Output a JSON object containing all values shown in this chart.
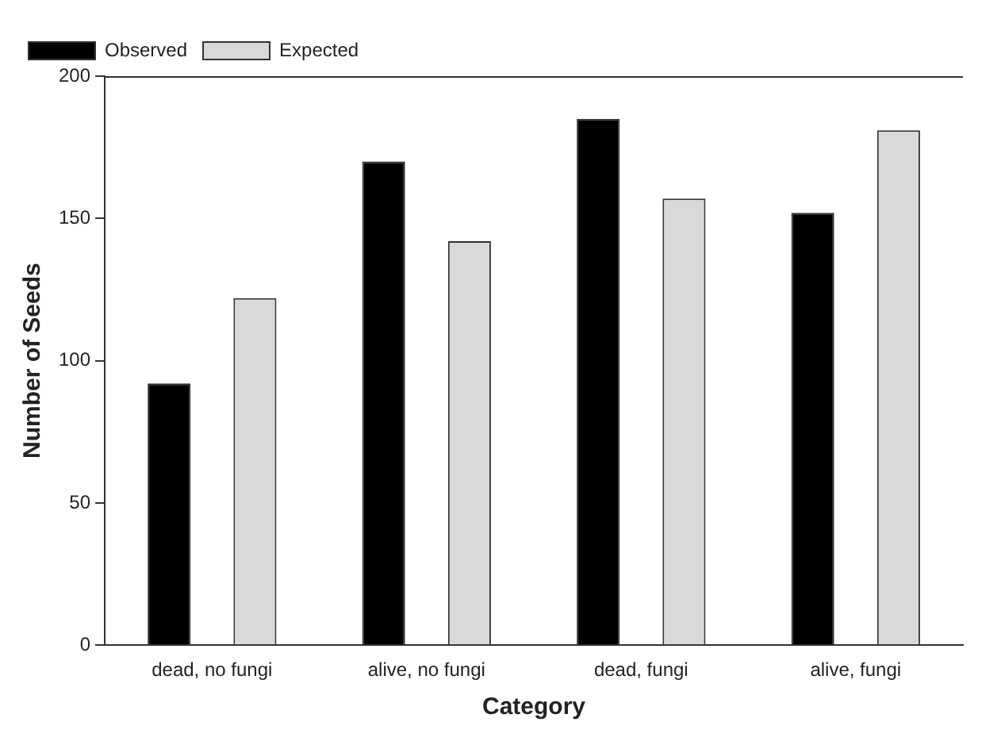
{
  "chart_data": {
    "type": "bar",
    "xlabel": "Category",
    "ylabel": "Number of Seeds",
    "categories": [
      "dead, no fungi",
      "alive, no fungi",
      "dead, fungi",
      "alive, fungi"
    ],
    "series": [
      {
        "name": "Observed",
        "color": "#000000",
        "values": [
          92,
          170,
          185,
          152
        ]
      },
      {
        "name": "Expected",
        "color": "#d9d9d9",
        "values": [
          122,
          142,
          157,
          181
        ]
      }
    ],
    "ylim": [
      0,
      200
    ],
    "yticks": [
      0,
      50,
      100,
      150,
      200
    ],
    "grid": false,
    "legend": "top left"
  }
}
